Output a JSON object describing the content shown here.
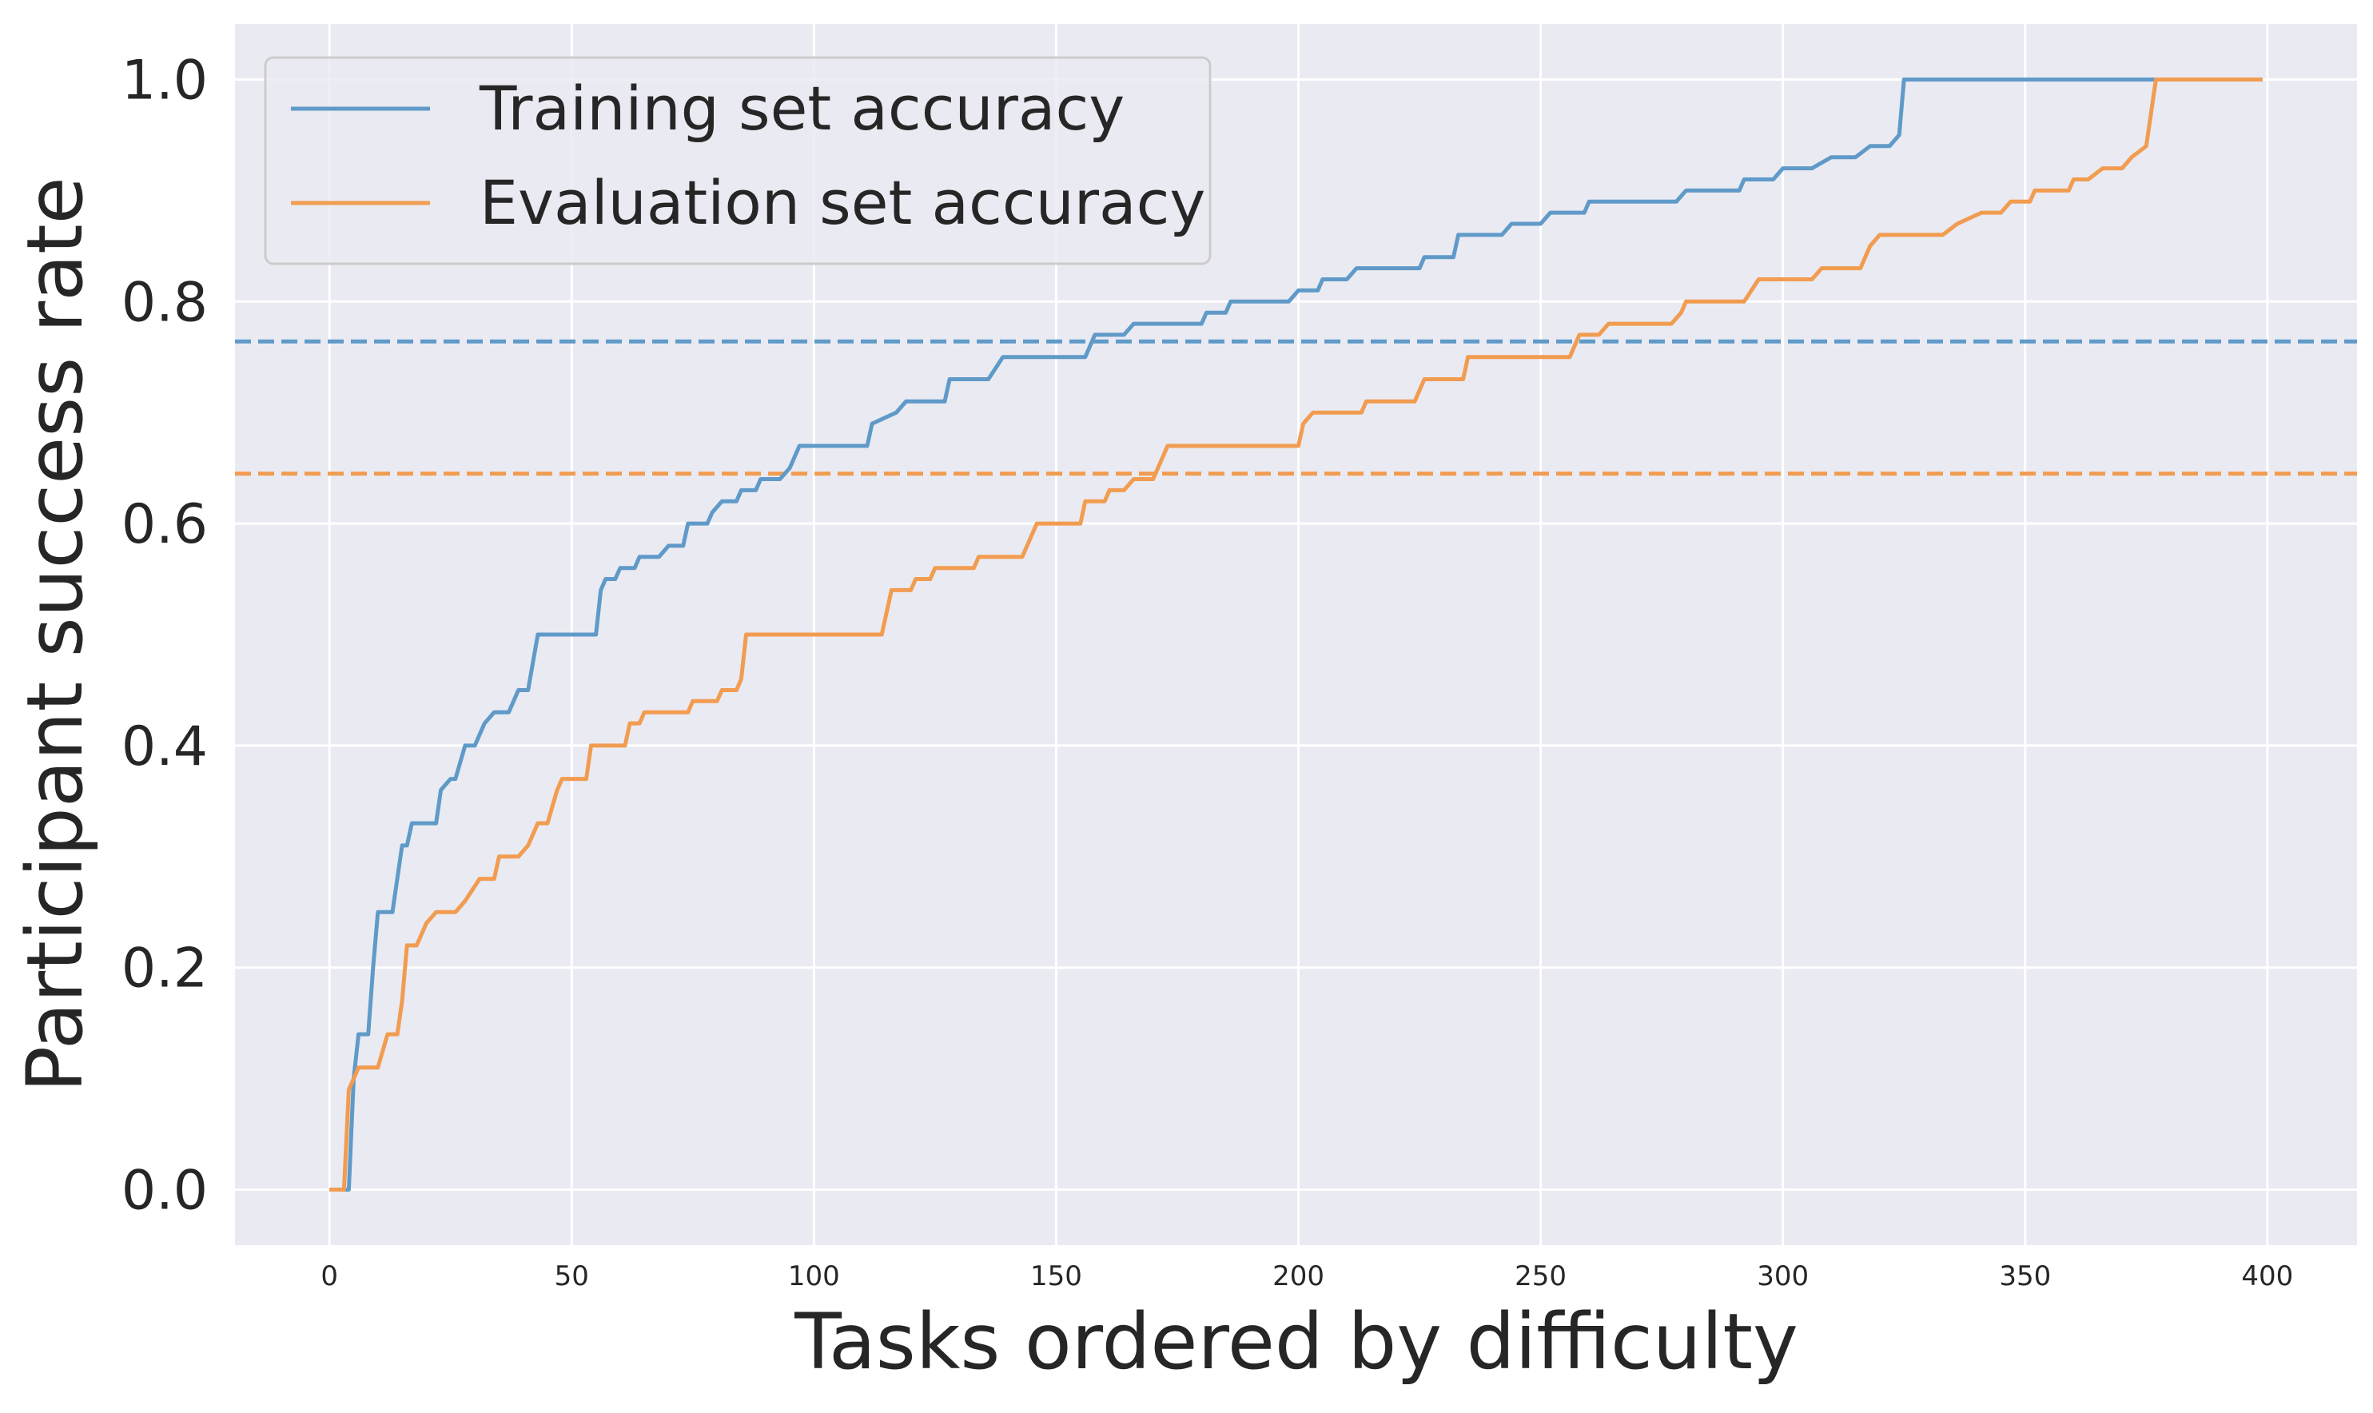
{
  "chart_data": {
    "type": "line",
    "title": "",
    "xlabel": "Tasks ordered by difficulty",
    "ylabel": "Participant success rate",
    "xlim": [
      -19.5,
      418.5
    ],
    "ylim": [
      -0.05,
      1.05
    ],
    "xticks": [
      0,
      50,
      100,
      150,
      200,
      250,
      300,
      350,
      400
    ],
    "yticks": [
      0.0,
      0.2,
      0.4,
      0.6,
      0.8,
      1.0
    ],
    "xtick_labels": [
      "0",
      "50",
      "100",
      "150",
      "200",
      "250",
      "300",
      "350",
      "400"
    ],
    "ytick_labels": [
      "0.0",
      "0.2",
      "0.4",
      "0.6",
      "0.8",
      "1.0"
    ],
    "grid": true,
    "legend_position": "top-left",
    "background_color": "#eaeaf2",
    "series": [
      {
        "name": "Training set accuracy",
        "color": "#5f9ac8",
        "style": "solid",
        "points": [
          [
            0,
            0.0
          ],
          [
            4,
            0.0
          ],
          [
            5,
            0.1
          ],
          [
            6,
            0.14
          ],
          [
            8,
            0.14
          ],
          [
            9,
            0.2
          ],
          [
            10,
            0.25
          ],
          [
            13,
            0.25
          ],
          [
            15,
            0.31
          ],
          [
            16,
            0.31
          ],
          [
            17,
            0.33
          ],
          [
            22,
            0.33
          ],
          [
            23,
            0.36
          ],
          [
            25,
            0.37
          ],
          [
            26,
            0.37
          ],
          [
            28,
            0.4
          ],
          [
            30,
            0.4
          ],
          [
            32,
            0.42
          ],
          [
            34,
            0.43
          ],
          [
            37,
            0.43
          ],
          [
            39,
            0.45
          ],
          [
            41,
            0.45
          ],
          [
            43,
            0.5
          ],
          [
            55,
            0.5
          ],
          [
            56,
            0.54
          ],
          [
            57,
            0.55
          ],
          [
            59,
            0.55
          ],
          [
            60,
            0.56
          ],
          [
            63,
            0.56
          ],
          [
            64,
            0.57
          ],
          [
            68,
            0.57
          ],
          [
            70,
            0.58
          ],
          [
            73,
            0.58
          ],
          [
            74,
            0.6
          ],
          [
            78,
            0.6
          ],
          [
            79,
            0.61
          ],
          [
            81,
            0.62
          ],
          [
            84,
            0.62
          ],
          [
            85,
            0.63
          ],
          [
            88,
            0.63
          ],
          [
            89,
            0.64
          ],
          [
            93,
            0.64
          ],
          [
            95,
            0.65
          ],
          [
            97,
            0.67
          ],
          [
            111,
            0.67
          ],
          [
            112,
            0.69
          ],
          [
            117,
            0.7
          ],
          [
            119,
            0.71
          ],
          [
            127,
            0.71
          ],
          [
            128,
            0.73
          ],
          [
            134,
            0.73
          ],
          [
            136,
            0.73
          ],
          [
            139,
            0.75
          ],
          [
            156,
            0.75
          ],
          [
            158,
            0.77
          ],
          [
            164,
            0.77
          ],
          [
            166,
            0.78
          ],
          [
            180,
            0.78
          ],
          [
            181,
            0.79
          ],
          [
            185,
            0.79
          ],
          [
            186,
            0.8
          ],
          [
            198,
            0.8
          ],
          [
            200,
            0.81
          ],
          [
            204,
            0.81
          ],
          [
            205,
            0.82
          ],
          [
            210,
            0.82
          ],
          [
            212,
            0.83
          ],
          [
            225,
            0.83
          ],
          [
            226,
            0.84
          ],
          [
            232,
            0.84
          ],
          [
            233,
            0.86
          ],
          [
            242,
            0.86
          ],
          [
            244,
            0.87
          ],
          [
            250,
            0.87
          ],
          [
            252,
            0.88
          ],
          [
            259,
            0.88
          ],
          [
            260,
            0.89
          ],
          [
            267,
            0.89
          ],
          [
            268,
            0.89
          ],
          [
            270,
            0.89
          ],
          [
            278,
            0.89
          ],
          [
            280,
            0.9
          ],
          [
            291,
            0.9
          ],
          [
            292,
            0.91
          ],
          [
            298,
            0.91
          ],
          [
            300,
            0.92
          ],
          [
            306,
            0.92
          ],
          [
            310,
            0.93
          ],
          [
            315,
            0.93
          ],
          [
            318,
            0.94
          ],
          [
            322,
            0.94
          ],
          [
            324,
            0.95
          ],
          [
            325,
            1.0
          ],
          [
            399,
            1.0
          ]
        ]
      },
      {
        "name": "Evaluation set accuracy",
        "color": "#f19c50",
        "style": "solid",
        "points": [
          [
            0,
            0.0
          ],
          [
            3,
            0.0
          ],
          [
            4,
            0.09
          ],
          [
            6,
            0.11
          ],
          [
            10,
            0.11
          ],
          [
            12,
            0.14
          ],
          [
            14,
            0.14
          ],
          [
            15,
            0.17
          ],
          [
            16,
            0.22
          ],
          [
            18,
            0.22
          ],
          [
            20,
            0.24
          ],
          [
            22,
            0.25
          ],
          [
            26,
            0.25
          ],
          [
            28,
            0.26
          ],
          [
            31,
            0.28
          ],
          [
            34,
            0.28
          ],
          [
            35,
            0.3
          ],
          [
            39,
            0.3
          ],
          [
            41,
            0.31
          ],
          [
            43,
            0.33
          ],
          [
            45,
            0.33
          ],
          [
            47,
            0.36
          ],
          [
            48,
            0.37
          ],
          [
            53,
            0.37
          ],
          [
            54,
            0.4
          ],
          [
            61,
            0.4
          ],
          [
            62,
            0.42
          ],
          [
            64,
            0.42
          ],
          [
            65,
            0.43
          ],
          [
            74,
            0.43
          ],
          [
            75,
            0.44
          ],
          [
            80,
            0.44
          ],
          [
            81,
            0.45
          ],
          [
            84,
            0.45
          ],
          [
            85,
            0.46
          ],
          [
            86,
            0.5
          ],
          [
            114,
            0.5
          ],
          [
            116,
            0.54
          ],
          [
            120,
            0.54
          ],
          [
            121,
            0.55
          ],
          [
            124,
            0.55
          ],
          [
            125,
            0.56
          ],
          [
            133,
            0.56
          ],
          [
            134,
            0.57
          ],
          [
            143,
            0.57
          ],
          [
            146,
            0.6
          ],
          [
            155,
            0.6
          ],
          [
            156,
            0.62
          ],
          [
            160,
            0.62
          ],
          [
            161,
            0.63
          ],
          [
            164,
            0.63
          ],
          [
            166,
            0.64
          ],
          [
            170,
            0.64
          ],
          [
            173,
            0.67
          ],
          [
            200,
            0.67
          ],
          [
            201,
            0.69
          ],
          [
            203,
            0.7
          ],
          [
            213,
            0.7
          ],
          [
            214,
            0.71
          ],
          [
            224,
            0.71
          ],
          [
            226,
            0.73
          ],
          [
            234,
            0.73
          ],
          [
            235,
            0.75
          ],
          [
            256,
            0.75
          ],
          [
            258,
            0.77
          ],
          [
            262,
            0.77
          ],
          [
            264,
            0.78
          ],
          [
            277,
            0.78
          ],
          [
            279,
            0.79
          ],
          [
            280,
            0.8
          ],
          [
            292,
            0.8
          ],
          [
            295,
            0.82
          ],
          [
            306,
            0.82
          ],
          [
            308,
            0.83
          ],
          [
            316,
            0.83
          ],
          [
            318,
            0.85
          ],
          [
            320,
            0.86
          ],
          [
            333,
            0.86
          ],
          [
            336,
            0.87
          ],
          [
            341,
            0.88
          ],
          [
            345,
            0.88
          ],
          [
            347,
            0.89
          ],
          [
            351,
            0.89
          ],
          [
            352,
            0.9
          ],
          [
            359,
            0.9
          ],
          [
            360,
            0.91
          ],
          [
            363,
            0.91
          ],
          [
            366,
            0.92
          ],
          [
            370,
            0.92
          ],
          [
            372,
            0.93
          ],
          [
            375,
            0.94
          ],
          [
            377,
            1.0
          ],
          [
            399,
            1.0
          ]
        ]
      }
    ],
    "reference_lines": [
      {
        "y": 0.764,
        "color": "#5f9ac8",
        "style": "dashed"
      },
      {
        "y": 0.645,
        "color": "#f19c50",
        "style": "dashed"
      }
    ]
  }
}
